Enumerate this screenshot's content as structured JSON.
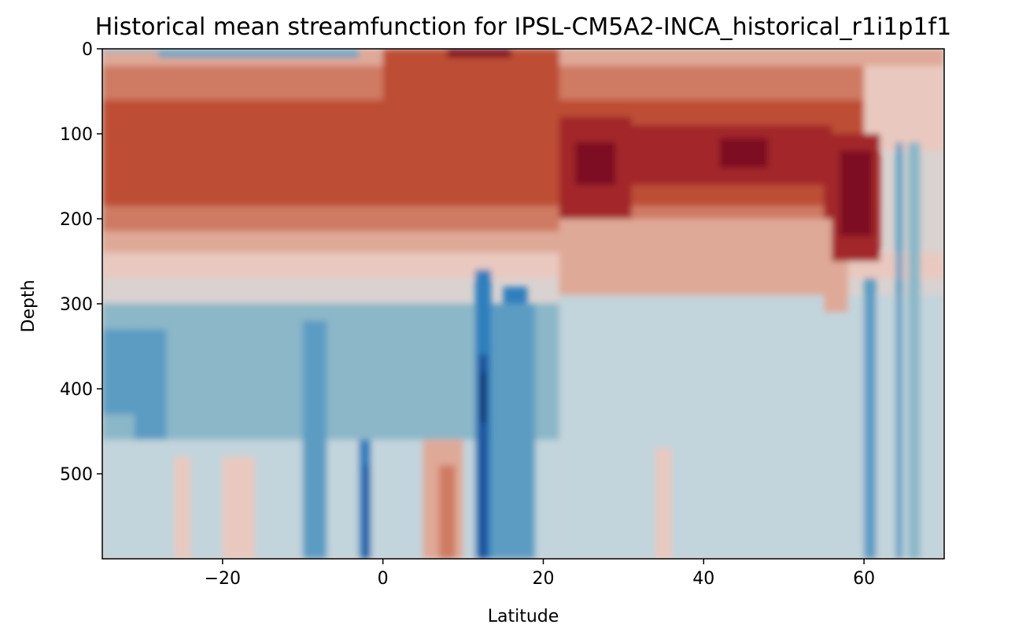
{
  "chart_data": {
    "type": "contour",
    "title": "Historical mean streamfunction for IPSL-CM5A2-INCA_historical_r1i1p1f1",
    "xlabel": "Latitude",
    "ylabel": "Depth",
    "xlim": [
      -35,
      70
    ],
    "ylim": [
      600,
      0
    ],
    "y_inverted": true,
    "xticks": [
      -20,
      0,
      20,
      40,
      60
    ],
    "xtick_labels": [
      "−20",
      "0",
      "20",
      "40",
      "60"
    ],
    "yticks": [
      0,
      100,
      200,
      300,
      400,
      500
    ],
    "ytick_labels": [
      "0",
      "100",
      "200",
      "300",
      "400",
      "500"
    ],
    "colormap": "diverging blue-white-red",
    "colors": {
      "negative": [
        "#0b1f4d",
        "#1f4e9a",
        "#2f7fbe",
        "#5b9cc3",
        "#8bb7c8",
        "#c2d4dc"
      ],
      "neutral": "#d9d2d0",
      "positive": [
        "#e9c9bf",
        "#dfa997",
        "#cf7a62",
        "#bd4d35",
        "#a2282a",
        "#7d0c22"
      ]
    },
    "grid": false,
    "legend": "none",
    "features": [
      {
        "name": "upper positive cell",
        "lat_range": [
          -35,
          62
        ],
        "depth_range": [
          50,
          200
        ],
        "sign": "positive"
      },
      {
        "name": "strong positive core 23-28N",
        "lat": 26,
        "depth": 125,
        "sign": "positive"
      },
      {
        "name": "strong positive core 43-47N",
        "lat": 45,
        "depth": 120,
        "sign": "positive"
      },
      {
        "name": "strong positive core 58-61N",
        "lat": 59,
        "depth": 140,
        "sign": "positive"
      },
      {
        "name": "deep negative column near 12N",
        "lat": 12.5,
        "depth_range": [
          260,
          600
        ],
        "sign": "negative"
      },
      {
        "name": "negative column near 16N",
        "lat": 16,
        "depth_range": [
          280,
          600
        ],
        "sign": "negative"
      },
      {
        "name": "negative column near -2",
        "lat": -2,
        "depth_range": [
          460,
          600
        ],
        "sign": "negative"
      },
      {
        "name": "mid-depth negative band",
        "lat_range": [
          -35,
          20
        ],
        "depth_range": [
          300,
          450
        ],
        "sign": "negative"
      },
      {
        "name": "surface negative cell",
        "lat_range": [
          -25,
          -3
        ],
        "depth_range": [
          0,
          10
        ],
        "sign": "negative"
      }
    ]
  }
}
